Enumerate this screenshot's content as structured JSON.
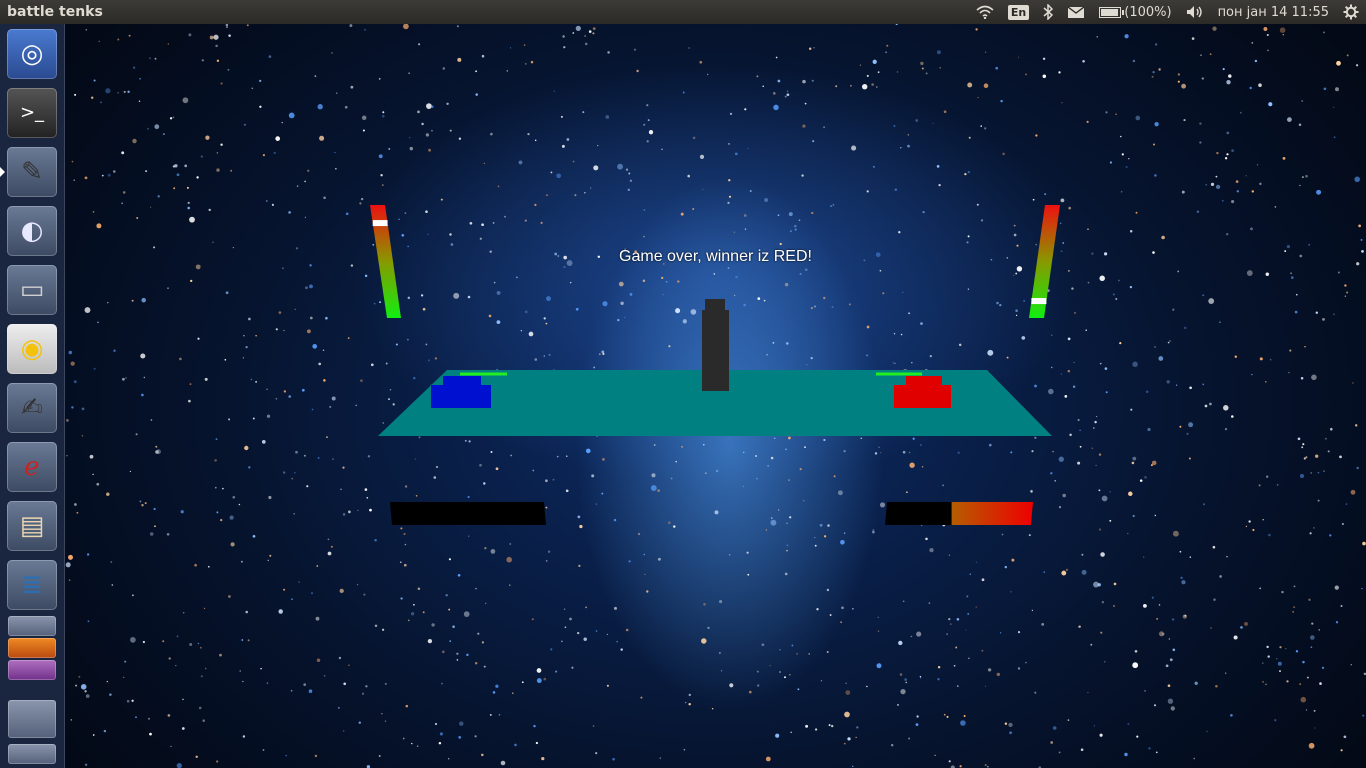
{
  "window": {
    "title": "battle tenks"
  },
  "tray": {
    "language": "En",
    "battery_text": "(100%)",
    "battery_level": 1.0,
    "clock": "пон јан 14 11:55"
  },
  "launcher": {
    "items": [
      {
        "name": "dash-home",
        "icon": "ubuntu-logo-icon",
        "glyph": "◎",
        "color": "#ffffff"
      },
      {
        "name": "terminal",
        "icon": "terminal-icon",
        "glyph": ">_",
        "color": "#ffffff"
      },
      {
        "name": "text-editor-doc",
        "icon": "editor-document-icon",
        "glyph": "✎",
        "color": "#333333"
      },
      {
        "name": "eclipse",
        "icon": "eclipse-icon",
        "glyph": "◐",
        "color": "#e8e8ff"
      },
      {
        "name": "scanner",
        "icon": "scanner-icon",
        "glyph": "▭",
        "color": "#d0d0d0"
      },
      {
        "name": "chrome",
        "icon": "chrome-icon",
        "glyph": "◉",
        "color": "#f4c20d"
      },
      {
        "name": "text-editor",
        "icon": "text-editor-icon",
        "glyph": "✍",
        "color": "#333333"
      },
      {
        "name": "pdf-viewer",
        "icon": "document-viewer-icon",
        "glyph": "ℯ",
        "color": "#cc2222"
      },
      {
        "name": "file-manager",
        "icon": "file-cabinet-icon",
        "glyph": "▤",
        "color": "#e8d6b0"
      },
      {
        "name": "writer",
        "icon": "office-writer-icon",
        "glyph": "≣",
        "color": "#2a6fb5"
      }
    ]
  },
  "game": {
    "message": "Game over, winner iz RED!",
    "colors": {
      "arena": "#008080",
      "pillar": "#2a2a2a",
      "blue_tank": "#0010d0",
      "red_tank": "#e00000",
      "aim_line": "#22ee22"
    },
    "blue_player": {
      "angle_level": 0.84,
      "power_level": 0.0
    },
    "red_player": {
      "angle_level": 0.15,
      "power_level": 0.55
    }
  }
}
